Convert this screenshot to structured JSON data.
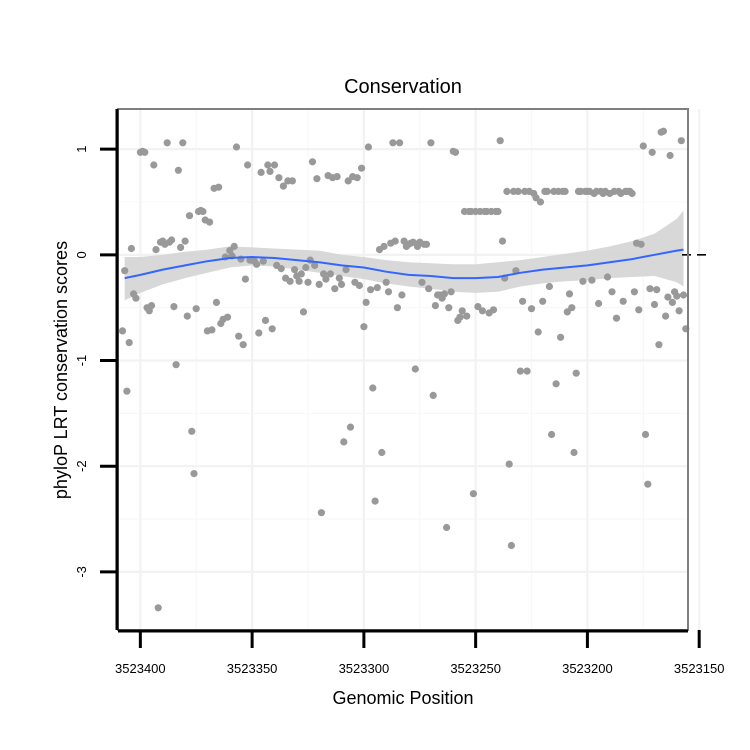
{
  "chart_data": {
    "type": "scatter",
    "title": "Conservation",
    "xlabel": "Genomic Position",
    "ylabel": "phyloP LRT conservation scores",
    "x_reversed": true,
    "xlim": [
      3523155,
      3523410
    ],
    "ylim": [
      -3.55,
      1.38
    ],
    "x_ticks": [
      3523400,
      3523350,
      3523300,
      3523250,
      3523200,
      3523150
    ],
    "x_tick_labels": [
      "3523400",
      "3523350",
      "3523300",
      "3523250",
      "3523200",
      "3523150"
    ],
    "y_ticks": [
      1,
      0,
      -1,
      -2,
      -3
    ],
    "y_tick_labels": [
      "1",
      "0",
      "-1",
      "-2",
      "-3"
    ],
    "reference_line": {
      "y": 0,
      "style": "dashed",
      "color": "#000000"
    },
    "points_color": "#999999",
    "smooth_color": "#3366ff",
    "band_color": "#d4d4d4",
    "points": [
      [
        3523408,
        -0.72
      ],
      [
        3523407,
        -0.15
      ],
      [
        3523406,
        -1.29
      ],
      [
        3523405,
        -0.83
      ],
      [
        3523404,
        0.06
      ],
      [
        3523403,
        -0.37
      ],
      [
        3523402,
        -0.41
      ],
      [
        3523400,
        0.97
      ],
      [
        3523399,
        0.98
      ],
      [
        3523398,
        0.97
      ],
      [
        3523397,
        -0.5
      ],
      [
        3523396,
        -0.53
      ],
      [
        3523395,
        -0.48
      ],
      [
        3523394,
        0.85
      ],
      [
        3523393,
        0.05
      ],
      [
        3523392,
        -3.34
      ],
      [
        3523391,
        0.12
      ],
      [
        3523390,
        0.13
      ],
      [
        3523389,
        0.1
      ],
      [
        3523388,
        1.06
      ],
      [
        3523387,
        0.12
      ],
      [
        3523386,
        0.14
      ],
      [
        3523385,
        -0.49
      ],
      [
        3523384,
        -1.04
      ],
      [
        3523383,
        0.8
      ],
      [
        3523382,
        0.07
      ],
      [
        3523381,
        1.06
      ],
      [
        3523380,
        0.13
      ],
      [
        3523379,
        -0.58
      ],
      [
        3523378,
        0.37
      ],
      [
        3523377,
        -1.67
      ],
      [
        3523376,
        -2.07
      ],
      [
        3523375,
        -0.51
      ],
      [
        3523374,
        0.41
      ],
      [
        3523373,
        0.42
      ],
      [
        3523372,
        0.41
      ],
      [
        3523371,
        0.33
      ],
      [
        3523370,
        -0.72
      ],
      [
        3523369,
        0.31
      ],
      [
        3523368,
        -0.71
      ],
      [
        3523367,
        0.63
      ],
      [
        3523366,
        -0.45
      ],
      [
        3523365,
        0.64
      ],
      [
        3523364,
        -0.65
      ],
      [
        3523363,
        -0.61
      ],
      [
        3523362,
        -0.02
      ],
      [
        3523361,
        -0.59
      ],
      [
        3523360,
        0.04
      ],
      [
        3523359,
        -0.01
      ],
      [
        3523358,
        0.08
      ],
      [
        3523357,
        1.02
      ],
      [
        3523356,
        -0.77
      ],
      [
        3523355,
        -0.04
      ],
      [
        3523354,
        -0.85
      ],
      [
        3523353,
        -0.23
      ],
      [
        3523352,
        0.85
      ],
      [
        3523351,
        -0.05
      ],
      [
        3523350,
        -0.05
      ],
      [
        3523349,
        -0.06
      ],
      [
        3523348,
        -0.09
      ],
      [
        3523347,
        -0.74
      ],
      [
        3523346,
        0.78
      ],
      [
        3523345,
        -0.06
      ],
      [
        3523344,
        -0.62
      ],
      [
        3523343,
        0.85
      ],
      [
        3523342,
        0.79
      ],
      [
        3523341,
        -0.7
      ],
      [
        3523340,
        0.85
      ],
      [
        3523339,
        -0.1
      ],
      [
        3523338,
        0.73
      ],
      [
        3523337,
        -0.13
      ],
      [
        3523336,
        0.65
      ],
      [
        3523335,
        -0.22
      ],
      [
        3523334,
        0.7
      ],
      [
        3523333,
        -0.25
      ],
      [
        3523332,
        0.7
      ],
      [
        3523331,
        -0.14
      ],
      [
        3523330,
        -0.2
      ],
      [
        3523329,
        -0.25
      ],
      [
        3523328,
        -0.18
      ],
      [
        3523327,
        -0.54
      ],
      [
        3523326,
        -0.12
      ],
      [
        3523325,
        -0.26
      ],
      [
        3523324,
        -0.05
      ],
      [
        3523323,
        0.88
      ],
      [
        3523322,
        -0.1
      ],
      [
        3523321,
        0.72
      ],
      [
        3523320,
        -0.28
      ],
      [
        3523319,
        -2.44
      ],
      [
        3523318,
        -0.18
      ],
      [
        3523317,
        -0.23
      ],
      [
        3523316,
        0.75
      ],
      [
        3523315,
        -0.18
      ],
      [
        3523314,
        0.73
      ],
      [
        3523313,
        -0.32
      ],
      [
        3523312,
        0.74
      ],
      [
        3523311,
        -0.22
      ],
      [
        3523310,
        -0.28
      ],
      [
        3523309,
        -1.77
      ],
      [
        3523308,
        -0.14
      ],
      [
        3523307,
        0.7
      ],
      [
        3523306,
        -1.63
      ],
      [
        3523305,
        0.74
      ],
      [
        3523304,
        -0.26
      ],
      [
        3523303,
        0.73
      ],
      [
        3523302,
        -0.29
      ],
      [
        3523301,
        0.82
      ],
      [
        3523300,
        -0.68
      ],
      [
        3523299,
        -0.45
      ],
      [
        3523298,
        1.02
      ],
      [
        3523297,
        -0.33
      ],
      [
        3523296,
        -1.26
      ],
      [
        3523295,
        -2.33
      ],
      [
        3523294,
        -0.31
      ],
      [
        3523293,
        0.05
      ],
      [
        3523292,
        -1.87
      ],
      [
        3523291,
        0.08
      ],
      [
        3523290,
        -0.26
      ],
      [
        3523289,
        -0.35
      ],
      [
        3523288,
        0.11
      ],
      [
        3523287,
        1.06
      ],
      [
        3523286,
        0.13
      ],
      [
        3523285,
        -0.5
      ],
      [
        3523284,
        1.06
      ],
      [
        3523283,
        -0.38
      ],
      [
        3523282,
        0.13
      ],
      [
        3523281,
        0.08
      ],
      [
        3523280,
        0.1
      ],
      [
        3523279,
        0.11
      ],
      [
        3523278,
        0.12
      ],
      [
        3523277,
        -1.08
      ],
      [
        3523276,
        0.08
      ],
      [
        3523275,
        0.12
      ],
      [
        3523274,
        -0.26
      ],
      [
        3523273,
        0.1
      ],
      [
        3523272,
        0.1
      ],
      [
        3523271,
        -0.32
      ],
      [
        3523270,
        1.06
      ],
      [
        3523269,
        -1.33
      ],
      [
        3523268,
        -0.48
      ],
      [
        3523267,
        -0.38
      ],
      [
        3523266,
        -0.38
      ],
      [
        3523265,
        -0.41
      ],
      [
        3523264,
        -0.37
      ],
      [
        3523263,
        -2.58
      ],
      [
        3523262,
        -0.5
      ],
      [
        3523261,
        -0.35
      ],
      [
        3523260,
        0.98
      ],
      [
        3523259,
        0.97
      ],
      [
        3523258,
        -0.62
      ],
      [
        3523257,
        -0.59
      ],
      [
        3523256,
        -0.53
      ],
      [
        3523255,
        0.41
      ],
      [
        3523254,
        -0.58
      ],
      [
        3523253,
        0.41
      ],
      [
        3523252,
        0.41
      ],
      [
        3523251,
        -2.26
      ],
      [
        3523250,
        0.41
      ],
      [
        3523249,
        -0.49
      ],
      [
        3523248,
        0.41
      ],
      [
        3523247,
        -0.53
      ],
      [
        3523246,
        0.41
      ],
      [
        3523245,
        0.41
      ],
      [
        3523244,
        -0.55
      ],
      [
        3523243,
        0.41
      ],
      [
        3523242,
        -0.52
      ],
      [
        3523241,
        0.41
      ],
      [
        3523240,
        0.41
      ],
      [
        3523239,
        1.08
      ],
      [
        3523238,
        0.13
      ],
      [
        3523237,
        -0.22
      ],
      [
        3523236,
        0.6
      ],
      [
        3523235,
        -1.98
      ],
      [
        3523234,
        -2.75
      ],
      [
        3523233,
        0.6
      ],
      [
        3523232,
        -0.15
      ],
      [
        3523231,
        0.6
      ],
      [
        3523230,
        -1.1
      ],
      [
        3523229,
        -0.44
      ],
      [
        3523228,
        0.6
      ],
      [
        3523227,
        -1.1
      ],
      [
        3523226,
        0.6
      ],
      [
        3523225,
        -0.51
      ],
      [
        3523224,
        0.58
      ],
      [
        3523223,
        0.54
      ],
      [
        3523222,
        -0.73
      ],
      [
        3523221,
        0.5
      ],
      [
        3523220,
        -0.44
      ],
      [
        3523219,
        0.6
      ],
      [
        3523218,
        0.6
      ],
      [
        3523217,
        -0.3
      ],
      [
        3523216,
        -1.7
      ],
      [
        3523215,
        0.6
      ],
      [
        3523214,
        -1.22
      ],
      [
        3523213,
        0.6
      ],
      [
        3523212,
        -0.78
      ],
      [
        3523211,
        0.6
      ],
      [
        3523210,
        0.6
      ],
      [
        3523209,
        -0.54
      ],
      [
        3523208,
        -0.37
      ],
      [
        3523207,
        -0.5
      ],
      [
        3523206,
        -1.87
      ],
      [
        3523205,
        -1.12
      ],
      [
        3523204,
        0.6
      ],
      [
        3523203,
        0.6
      ],
      [
        3523202,
        -0.25
      ],
      [
        3523201,
        0.6
      ],
      [
        3523200,
        0.6
      ],
      [
        3523199,
        0.6
      ],
      [
        3523198,
        -0.24
      ],
      [
        3523197,
        0.58
      ],
      [
        3523196,
        0.6
      ],
      [
        3523195,
        -0.46
      ],
      [
        3523194,
        0.6
      ],
      [
        3523193,
        0.58
      ],
      [
        3523192,
        0.6
      ],
      [
        3523191,
        -0.21
      ],
      [
        3523190,
        0.58
      ],
      [
        3523189,
        -0.35
      ],
      [
        3523188,
        0.6
      ],
      [
        3523187,
        -0.6
      ],
      [
        3523186,
        0.6
      ],
      [
        3523185,
        0.58
      ],
      [
        3523184,
        -0.44
      ],
      [
        3523183,
        0.6
      ],
      [
        3523182,
        0.6
      ],
      [
        3523181,
        0.6
      ],
      [
        3523180,
        0.58
      ],
      [
        3523179,
        -0.35
      ],
      [
        3523178,
        0.11
      ],
      [
        3523177,
        -0.52
      ],
      [
        3523176,
        0.1
      ],
      [
        3523175,
        1.03
      ],
      [
        3523174,
        -1.7
      ],
      [
        3523173,
        -2.17
      ],
      [
        3523172,
        -0.32
      ],
      [
        3523171,
        0.97
      ],
      [
        3523170,
        -0.47
      ],
      [
        3523169,
        -0.33
      ],
      [
        3523168,
        -0.85
      ],
      [
        3523167,
        1.16
      ],
      [
        3523166,
        1.17
      ],
      [
        3523165,
        -0.58
      ],
      [
        3523164,
        -0.4
      ],
      [
        3523163,
        0.94
      ],
      [
        3523162,
        -0.45
      ],
      [
        3523161,
        -0.35
      ],
      [
        3523160,
        -0.39
      ],
      [
        3523159,
        -0.53
      ],
      [
        3523158,
        1.08
      ],
      [
        3523157,
        -0.38
      ],
      [
        3523156,
        -0.7
      ]
    ],
    "smooth": {
      "x": [
        3523407,
        3523400,
        3523390,
        3523380,
        3523370,
        3523360,
        3523350,
        3523340,
        3523330,
        3523320,
        3523310,
        3523300,
        3523290,
        3523280,
        3523270,
        3523260,
        3523250,
        3523240,
        3523230,
        3523220,
        3523210,
        3523200,
        3523190,
        3523180,
        3523170,
        3523160,
        3523157
      ],
      "y": [
        -0.22,
        -0.19,
        -0.14,
        -0.1,
        -0.06,
        -0.03,
        -0.02,
        -0.03,
        -0.05,
        -0.07,
        -0.1,
        -0.12,
        -0.16,
        -0.19,
        -0.2,
        -0.22,
        -0.22,
        -0.21,
        -0.17,
        -0.14,
        -0.12,
        -0.1,
        -0.07,
        -0.04,
        0.0,
        0.04,
        0.05
      ],
      "lower": [
        -0.43,
        -0.36,
        -0.28,
        -0.22,
        -0.17,
        -0.12,
        -0.1,
        -0.11,
        -0.14,
        -0.17,
        -0.2,
        -0.23,
        -0.27,
        -0.3,
        -0.32,
        -0.35,
        -0.36,
        -0.35,
        -0.3,
        -0.27,
        -0.25,
        -0.24,
        -0.22,
        -0.21,
        -0.2,
        -0.26,
        -0.3
      ],
      "upper": [
        -0.02,
        -0.02,
        0.0,
        0.03,
        0.05,
        0.08,
        0.07,
        0.06,
        0.05,
        0.04,
        0.0,
        -0.02,
        -0.05,
        -0.07,
        -0.08,
        -0.09,
        -0.09,
        -0.07,
        -0.05,
        -0.02,
        0.01,
        0.04,
        0.08,
        0.13,
        0.2,
        0.34,
        0.42
      ]
    }
  }
}
